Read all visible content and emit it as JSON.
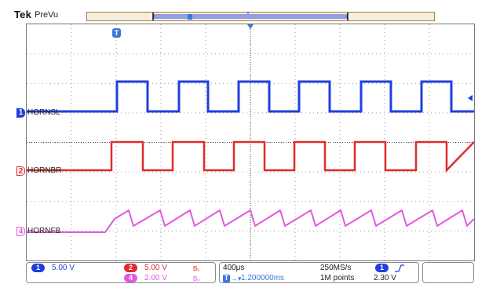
{
  "header": {
    "brand": "Tek",
    "mode": "PreVu"
  },
  "trigger_marker": {
    "label": "T"
  },
  "channels": [
    {
      "number": "1",
      "label": "HORNSL",
      "color": "#1f3fdc",
      "marker_style": "filled"
    },
    {
      "number": "2",
      "label": "HORNBR",
      "color": "#e02a2a",
      "marker_style": "outlined"
    },
    {
      "number": "4",
      "label": "HORNFB",
      "color": "#e05ae0",
      "marker_style": "outlined"
    }
  ],
  "status": {
    "ch1": {
      "number": "1",
      "scale": "5.00 V",
      "color": "#1f3fdc"
    },
    "ch2": {
      "number": "2",
      "scale": "5.00 V",
      "color": "#e02a2a",
      "bw_icon": "bandwidth-limit-icon"
    },
    "ch4": {
      "number": "4",
      "scale": "2.00 V",
      "color": "#e05ae0",
      "bw_icon": "bandwidth-limit-icon"
    },
    "timebase": "400μs",
    "trigger_position": "1.200000ms",
    "sample_rate": "250MS/s",
    "record_length": "1M points",
    "trigger": {
      "source": "1",
      "slope_icon": "rising-edge-icon",
      "level": "2.30 V"
    }
  }
}
